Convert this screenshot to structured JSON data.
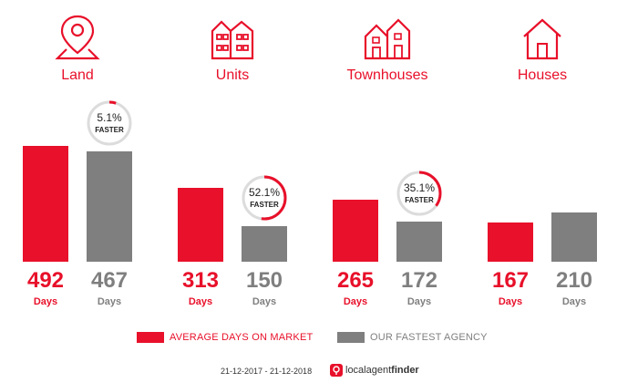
{
  "chart_data": {
    "type": "bar",
    "categories": [
      "Land",
      "Units",
      "Townhouses",
      "Houses"
    ],
    "series": [
      {
        "name": "AVERAGE DAYS ON MARKET",
        "values": [
          492,
          313,
          265,
          167
        ]
      },
      {
        "name": "OUR FASTEST AGENCY",
        "values": [
          467,
          150,
          172,
          210
        ]
      }
    ],
    "value_unit": "Days",
    "faster_badges": [
      {
        "category": "Land",
        "percent": "5.1%",
        "fraction": 0.051,
        "label": "FASTER"
      },
      {
        "category": "Units",
        "percent": "52.1%",
        "fraction": 0.521,
        "label": "FASTER"
      },
      {
        "category": "Townhouses",
        "percent": "35.1%",
        "fraction": 0.351,
        "label": "FASTER"
      }
    ],
    "ylim": [
      0,
      510
    ],
    "grid": false,
    "legend_placement": "bottom"
  },
  "icons": [
    "map-pin-icon",
    "units-building-icon",
    "townhouses-icon",
    "house-icon"
  ],
  "colors": {
    "accent": "#e8102a",
    "secondary": "#7f7f7f"
  },
  "footer": {
    "date_range": "21-12-2017 - 21-12-2018",
    "brand_light": "localagent",
    "brand_bold": "finder"
  }
}
